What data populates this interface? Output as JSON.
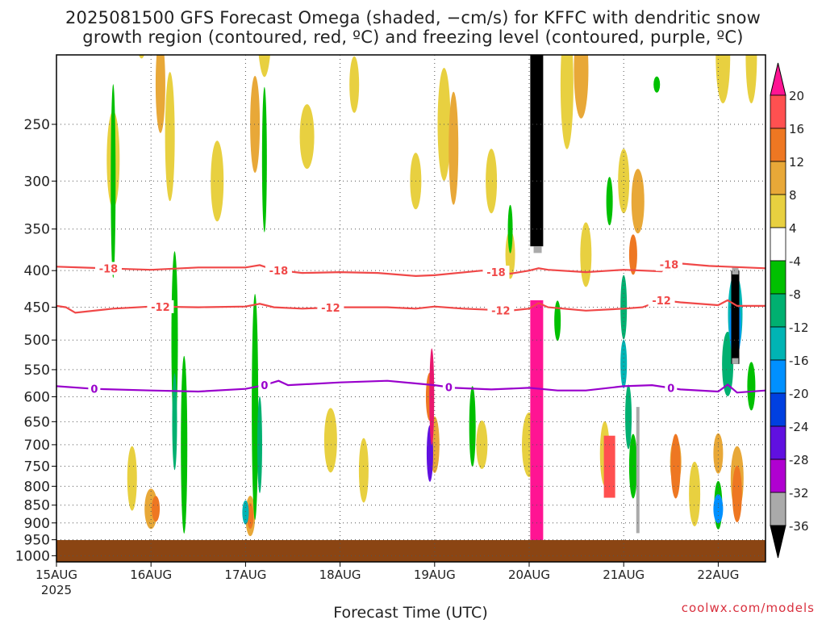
{
  "title_line1": "2025081500 GFS Forecast Omega (shaded, −cm/s) for KFFC with dendritic snow",
  "title_line2": "growth region (contoured, red, ºC) and freezing level (contoured, purple, ºC)",
  "credit": "coolwx.com/models",
  "colors": {
    "ground": "#8b4513",
    "dendritic_contour": "#f04848",
    "freezing_contour": "#9900cc",
    "grid": "#555555"
  },
  "chart_data": {
    "type": "heatmap",
    "title": "2025081500 GFS Forecast Omega (shaded, −cm/s) for KFFC with dendritic snow growth region (contoured, red, ºC) and freezing level (contoured, purple, ºC)",
    "xlabel": "Forecast Time (UTC)",
    "ylabel": "",
    "x_ticks": [
      {
        "label": "15AUG",
        "sub": "2025",
        "day": 0
      },
      {
        "label": "16AUG",
        "sub": "",
        "day": 1
      },
      {
        "label": "17AUG",
        "sub": "",
        "day": 2
      },
      {
        "label": "18AUG",
        "sub": "",
        "day": 3
      },
      {
        "label": "19AUG",
        "sub": "",
        "day": 4
      },
      {
        "label": "20AUG",
        "sub": "",
        "day": 5
      },
      {
        "label": "21AUG",
        "sub": "",
        "day": 6
      },
      {
        "label": "22AUG",
        "sub": "",
        "day": 7
      }
    ],
    "x_range_days": [
      0,
      7.5
    ],
    "y_ticks": [
      250,
      300,
      350,
      400,
      450,
      500,
      550,
      600,
      650,
      700,
      750,
      800,
      850,
      900,
      950,
      1000
    ],
    "y_range_hpa": [
      1020,
      200
    ],
    "y_scale": "log-pressure",
    "grid": true,
    "colorbar": {
      "labels": [
        "20",
        "16",
        "12",
        "8",
        "4",
        "-4",
        "-8",
        "-12",
        "-16",
        "-20",
        "-24",
        "-28",
        "-32",
        "-36"
      ],
      "colors": [
        "#ff5050",
        "#ee7722",
        "#e8a838",
        "#e8d040",
        "#ffffff",
        "#00c000",
        "#00b070",
        "#00b4b4",
        "#0090ff",
        "#0040e0",
        "#6010e0",
        "#b000d0",
        "#aaaaaa",
        "#000000"
      ],
      "top_arrow_color": "#ff1493"
    },
    "contours": [
      {
        "name": "-18",
        "color": "dendritic",
        "labels": [
          "-18",
          "-18",
          "-18",
          "-18"
        ],
        "points": [
          [
            0,
            395
          ],
          [
            0.5,
            397
          ],
          [
            1,
            399
          ],
          [
            1.5,
            396
          ],
          [
            2,
            396
          ],
          [
            2.15,
            393
          ],
          [
            2.3,
            399
          ],
          [
            2.6,
            403
          ],
          [
            3,
            402
          ],
          [
            3.4,
            403
          ],
          [
            3.8,
            407
          ],
          [
            4,
            406
          ],
          [
            4.5,
            400
          ],
          [
            4.8,
            404
          ],
          [
            5,
            400
          ],
          [
            5.1,
            397
          ],
          [
            5.2,
            399
          ],
          [
            5.6,
            402
          ],
          [
            6,
            399
          ],
          [
            6.4,
            401
          ],
          [
            6.5,
            390
          ],
          [
            6.9,
            394
          ],
          [
            7.5,
            397
          ]
        ],
        "label_at": [
          0.55,
          2.35,
          4.65,
          6.48
        ]
      },
      {
        "name": "-12",
        "color": "dendritic",
        "labels": [
          "-12",
          "-12",
          "-12",
          "-12"
        ],
        "points": [
          [
            0,
            448
          ],
          [
            0.1,
            450
          ],
          [
            0.2,
            458
          ],
          [
            0.6,
            452
          ],
          [
            1,
            449
          ],
          [
            1.5,
            450
          ],
          [
            2,
            449
          ],
          [
            2.15,
            445
          ],
          [
            2.3,
            450
          ],
          [
            2.6,
            452
          ],
          [
            3,
            450
          ],
          [
            3.5,
            450
          ],
          [
            3.8,
            452
          ],
          [
            4,
            449
          ],
          [
            4.3,
            452
          ],
          [
            4.8,
            455
          ],
          [
            5,
            452
          ],
          [
            5.1,
            444
          ],
          [
            5.2,
            450
          ],
          [
            5.6,
            455
          ],
          [
            6,
            452
          ],
          [
            6.2,
            450
          ],
          [
            6.4,
            440
          ],
          [
            6.6,
            443
          ],
          [
            7,
            447
          ],
          [
            7.1,
            440
          ],
          [
            7.2,
            448
          ],
          [
            7.5,
            448
          ]
        ],
        "label_at": [
          1.1,
          2.9,
          4.7,
          6.4
        ]
      },
      {
        "name": "0",
        "color": "freezing",
        "labels": [
          "0",
          "0",
          "0",
          "0"
        ],
        "points": [
          [
            0,
            580
          ],
          [
            0.4,
            585
          ],
          [
            1,
            588
          ],
          [
            1.5,
            590
          ],
          [
            2,
            585
          ],
          [
            2.2,
            578
          ],
          [
            2.35,
            570
          ],
          [
            2.45,
            578
          ],
          [
            3,
            573
          ],
          [
            3.5,
            570
          ],
          [
            4,
            578
          ],
          [
            4.2,
            583
          ],
          [
            4.6,
            586
          ],
          [
            5,
            583
          ],
          [
            5.3,
            588
          ],
          [
            5.6,
            588
          ],
          [
            6,
            580
          ],
          [
            6.3,
            578
          ],
          [
            6.6,
            586
          ],
          [
            7,
            590
          ],
          [
            7.1,
            577
          ],
          [
            7.2,
            592
          ],
          [
            7.5,
            588
          ]
        ],
        "label_at": [
          0.4,
          2.2,
          4.15,
          6.5
        ]
      }
    ]
  }
}
